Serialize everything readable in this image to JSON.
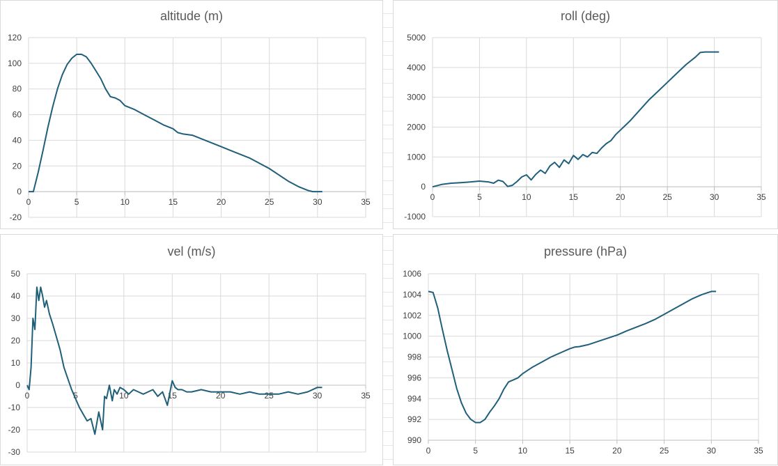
{
  "theme": {
    "line_color": "#1f5f7a",
    "grid_color": "#d9d9d9",
    "axis_color": "#bfbfbf",
    "text_color": "#595959"
  },
  "chart_data": [
    {
      "id": "altitude",
      "type": "line",
      "title": "altitude (m)",
      "xlabel": "",
      "ylabel": "",
      "xlim": [
        0,
        35
      ],
      "ylim": [
        -20,
        120
      ],
      "xticks": [
        0,
        5,
        10,
        15,
        20,
        25,
        30,
        35
      ],
      "yticks": [
        -20,
        0,
        20,
        40,
        60,
        80,
        100,
        120
      ],
      "grid": true,
      "legend": "none",
      "series": [
        {
          "x": [
            0,
            0.5,
            1,
            1.5,
            2,
            2.5,
            3,
            3.5,
            4,
            4.5,
            5,
            5.5,
            6,
            6.5,
            7,
            7.5,
            8,
            8.5,
            9,
            9.5,
            10,
            11,
            12,
            13,
            14,
            15,
            15.5,
            16,
            17,
            18,
            19,
            20,
            21,
            22,
            23,
            24,
            25,
            26,
            27,
            28,
            29,
            29.5,
            30,
            30.5
          ],
          "y": [
            0,
            0,
            15,
            32,
            50,
            66,
            80,
            91,
            99,
            104,
            107,
            107,
            105,
            100,
            94,
            88,
            80,
            74,
            73,
            71,
            67,
            64,
            60,
            56,
            52,
            49,
            46,
            45,
            44,
            41,
            38,
            35,
            32,
            29,
            26,
            22,
            18,
            13,
            8,
            4,
            1,
            0,
            0,
            0
          ]
        }
      ]
    },
    {
      "id": "roll",
      "type": "line",
      "title": "roll (deg)",
      "xlabel": "",
      "ylabel": "",
      "xlim": [
        0,
        35
      ],
      "ylim": [
        -1000,
        5000
      ],
      "xticks": [
        0,
        5,
        10,
        15,
        20,
        25,
        30,
        35
      ],
      "yticks": [
        -1000,
        0,
        1000,
        2000,
        3000,
        4000,
        5000
      ],
      "grid": true,
      "legend": "none",
      "series": [
        {
          "x": [
            0,
            1,
            2,
            3,
            4,
            5,
            6,
            6.5,
            7,
            7.5,
            8,
            8.5,
            9,
            9.5,
            10,
            10.5,
            11,
            11.5,
            12,
            12.5,
            13,
            13.5,
            14,
            14.5,
            15,
            15.5,
            16,
            16.5,
            17,
            17.5,
            18,
            18.5,
            19,
            19.5,
            20,
            21,
            22,
            23,
            24,
            25,
            26,
            27,
            28,
            28.5,
            29,
            30,
            30.5
          ],
          "y": [
            0,
            80,
            120,
            140,
            160,
            190,
            160,
            120,
            220,
            180,
            10,
            50,
            180,
            330,
            400,
            230,
            420,
            560,
            450,
            700,
            820,
            650,
            900,
            780,
            1050,
            920,
            1080,
            1000,
            1150,
            1120,
            1300,
            1450,
            1550,
            1750,
            1900,
            2200,
            2550,
            2900,
            3200,
            3500,
            3800,
            4100,
            4350,
            4500,
            4520,
            4520,
            4520
          ]
        }
      ]
    },
    {
      "id": "vel",
      "type": "line",
      "title": "vel (m/s)",
      "xlabel": "",
      "ylabel": "",
      "xlim": [
        0,
        35
      ],
      "ylim": [
        -30,
        50
      ],
      "xticks": [
        0,
        5,
        10,
        15,
        20,
        25,
        30,
        35
      ],
      "yticks": [
        -30,
        -20,
        -10,
        0,
        10,
        20,
        30,
        40,
        50
      ],
      "grid": true,
      "legend": "none",
      "series": [
        {
          "x": [
            0,
            0.2,
            0.4,
            0.6,
            0.8,
            1.0,
            1.2,
            1.4,
            1.6,
            1.8,
            2.0,
            2.3,
            2.6,
            3.0,
            3.4,
            3.8,
            4.2,
            4.6,
            5.0,
            5.4,
            5.8,
            6.2,
            6.6,
            7.0,
            7.4,
            7.8,
            8.0,
            8.2,
            8.5,
            8.8,
            9.0,
            9.3,
            9.6,
            10.0,
            10.5,
            11,
            11.5,
            12,
            12.5,
            13,
            13.5,
            14,
            14.5,
            15,
            15.3,
            15.6,
            16,
            16.5,
            17,
            18,
            19,
            20,
            21,
            22,
            23,
            24,
            25,
            26,
            27,
            28,
            29,
            30,
            30.5
          ],
          "y": [
            0,
            -2,
            8,
            30,
            25,
            44,
            38,
            44,
            40,
            35,
            38,
            32,
            28,
            22,
            16,
            8,
            3,
            -2,
            -6,
            -10,
            -13,
            -16,
            -15,
            -22,
            -12,
            -20,
            -5,
            -6,
            0,
            -7,
            -2,
            -4,
            -1,
            -2,
            -4,
            -2,
            -3,
            -4,
            -3,
            -2,
            -5,
            -3,
            -9,
            2,
            -1,
            -2,
            -2,
            -3,
            -3,
            -2,
            -3,
            -3,
            -3,
            -4,
            -3,
            -4,
            -4,
            -4,
            -3,
            -4,
            -3,
            -1,
            -1
          ]
        }
      ]
    },
    {
      "id": "pressure",
      "type": "line",
      "title": "pressure (hPa)",
      "xlabel": "",
      "ylabel": "",
      "xlim": [
        0,
        35
      ],
      "ylim": [
        990,
        1006
      ],
      "xticks": [
        0,
        5,
        10,
        15,
        20,
        25,
        30,
        35
      ],
      "yticks": [
        990,
        992,
        994,
        996,
        998,
        1000,
        1002,
        1004,
        1006
      ],
      "grid": true,
      "legend": "none",
      "series": [
        {
          "x": [
            0,
            0.5,
            1,
            1.5,
            2,
            2.5,
            3,
            3.5,
            4,
            4.5,
            5,
            5.5,
            6,
            6.5,
            7,
            7.5,
            8,
            8.5,
            9,
            9.5,
            10,
            11,
            12,
            13,
            14,
            15,
            15.5,
            16,
            17,
            18,
            19,
            20,
            21,
            22,
            23,
            24,
            25,
            26,
            27,
            28,
            29,
            30,
            30.5
          ],
          "y": [
            1004.3,
            1004.2,
            1002.7,
            1000.6,
            998.6,
            996.8,
            995.0,
            993.6,
            992.6,
            992.0,
            991.7,
            991.7,
            992.0,
            992.7,
            993.3,
            994.0,
            994.9,
            995.6,
            995.8,
            996.0,
            996.4,
            997.0,
            997.5,
            998.0,
            998.4,
            998.8,
            998.95,
            999.0,
            999.2,
            999.5,
            999.8,
            1000.1,
            1000.5,
            1000.85,
            1001.2,
            1001.6,
            1002.1,
            1002.6,
            1003.1,
            1003.6,
            1004.0,
            1004.3,
            1004.3
          ]
        }
      ]
    }
  ]
}
